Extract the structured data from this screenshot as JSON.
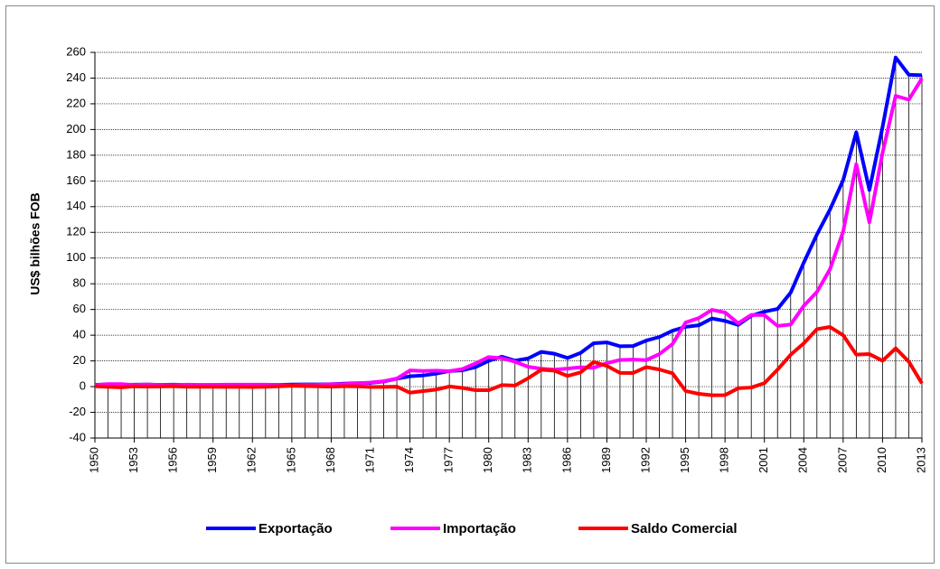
{
  "chart_data": {
    "type": "line",
    "y_label": "US$ bilhões  FOB",
    "x": [
      1950,
      1951,
      1952,
      1953,
      1954,
      1955,
      1956,
      1957,
      1958,
      1959,
      1960,
      1961,
      1962,
      1963,
      1964,
      1965,
      1966,
      1967,
      1968,
      1969,
      1970,
      1971,
      1972,
      1973,
      1974,
      1975,
      1976,
      1977,
      1978,
      1979,
      1980,
      1981,
      1982,
      1983,
      1984,
      1985,
      1986,
      1987,
      1988,
      1989,
      1990,
      1991,
      1992,
      1993,
      1994,
      1995,
      1996,
      1997,
      1998,
      1999,
      2000,
      2001,
      2002,
      2003,
      2004,
      2005,
      2006,
      2007,
      2008,
      2009,
      2010,
      2011,
      2012,
      2013
    ],
    "series": [
      {
        "name": "Exportação",
        "color": "#0000ff",
        "values": [
          1.4,
          1.8,
          1.4,
          1.5,
          1.6,
          1.4,
          1.5,
          1.4,
          1.2,
          1.3,
          1.3,
          1.4,
          1.2,
          1.4,
          1.4,
          1.6,
          1.7,
          1.7,
          1.9,
          2.3,
          2.7,
          2.9,
          4.0,
          6.2,
          8.0,
          8.7,
          10.1,
          12.1,
          12.7,
          15.2,
          20.1,
          23.3,
          20.2,
          21.9,
          27.0,
          25.6,
          22.3,
          26.2,
          33.8,
          34.4,
          31.4,
          31.6,
          35.8,
          38.6,
          43.5,
          46.5,
          47.7,
          53.0,
          51.1,
          48.0,
          55.1,
          58.3,
          60.4,
          73.1,
          96.5,
          118.3,
          137.8,
          160.6,
          197.9,
          153.0,
          201.9,
          256.0,
          242.6,
          242.2
        ]
      },
      {
        "name": "Importação",
        "color": "#ff00ff",
        "values": [
          1.1,
          2.0,
          2.0,
          1.3,
          1.6,
          1.3,
          1.2,
          1.5,
          1.4,
          1.4,
          1.5,
          1.5,
          1.5,
          1.5,
          1.3,
          0.9,
          1.3,
          1.4,
          1.9,
          2.0,
          2.5,
          3.2,
          4.2,
          6.2,
          12.6,
          12.2,
          12.4,
          12.0,
          13.7,
          18.1,
          23.0,
          22.1,
          19.4,
          15.4,
          13.9,
          13.2,
          14.0,
          15.1,
          14.6,
          18.3,
          20.7,
          21.0,
          20.6,
          25.3,
          33.1,
          49.9,
          53.3,
          59.7,
          57.7,
          49.3,
          55.8,
          55.6,
          47.2,
          48.3,
          62.8,
          73.6,
          91.4,
          120.6,
          173.0,
          127.7,
          181.8,
          226.2,
          223.2,
          239.7
        ]
      },
      {
        "name": "Saldo Comercial",
        "color": "#ff0000",
        "values": [
          0.3,
          -0.2,
          -0.6,
          0.2,
          0,
          0.1,
          0.3,
          -0.1,
          -0.1,
          -0.1,
          -0.2,
          -0.1,
          -0.3,
          -0.1,
          0.2,
          0.7,
          0.4,
          0.2,
          0,
          0.3,
          0.2,
          -0.3,
          -0.2,
          0,
          -4.7,
          -3.5,
          -2.3,
          0.1,
          -1.0,
          -2.8,
          -2.8,
          1.2,
          0.8,
          6.5,
          13.1,
          12.4,
          8.3,
          11.1,
          19.2,
          16.1,
          10.7,
          10.6,
          15.2,
          13.3,
          10.4,
          -3.4,
          -5.6,
          -6.7,
          -6.6,
          -1.3,
          -0.7,
          2.7,
          13.2,
          24.8,
          33.7,
          44.7,
          46.4,
          40.0,
          24.9,
          25.3,
          20.1,
          29.8,
          19.4,
          2.5
        ]
      }
    ],
    "xlim": [
      1950,
      2013
    ],
    "xticks": [
      1950,
      1953,
      1956,
      1959,
      1962,
      1965,
      1968,
      1971,
      1974,
      1977,
      1980,
      1983,
      1986,
      1989,
      1992,
      1995,
      1998,
      2001,
      2004,
      2007,
      2010,
      2013
    ],
    "ylim": [
      -40,
      260
    ],
    "yticks": [
      -40,
      -20,
      0,
      20,
      40,
      60,
      80,
      100,
      120,
      140,
      160,
      180,
      200,
      220,
      240,
      260
    ],
    "grid": true,
    "legend": "bottom"
  }
}
